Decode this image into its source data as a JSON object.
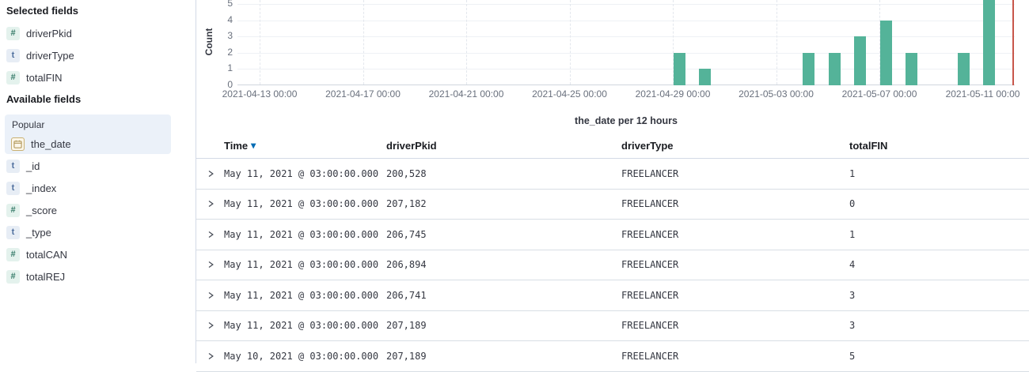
{
  "colors": {
    "bar_green": "#54B399",
    "now_marker_red": "#C8564B",
    "sort_accent_blue": "#006BB4",
    "popular_bg": "#EBF1F9",
    "number_badge": "#357A68",
    "string_badge": "#4F6F9E",
    "date_icon": "#A98E4C"
  },
  "sidebar": {
    "selected_heading": "Selected fields",
    "available_heading": "Available fields",
    "popular_label": "Popular",
    "selected_fields": [
      {
        "name": "driverPkid",
        "type": "number"
      },
      {
        "name": "driverType",
        "type": "string"
      },
      {
        "name": "totalFIN",
        "type": "number"
      }
    ],
    "popular_fields": [
      {
        "name": "the_date",
        "type": "date"
      }
    ],
    "available_fields": [
      {
        "name": "_id",
        "type": "string"
      },
      {
        "name": "_index",
        "type": "string"
      },
      {
        "name": "_score",
        "type": "number"
      },
      {
        "name": "_type",
        "type": "string"
      },
      {
        "name": "totalCAN",
        "type": "number"
      },
      {
        "name": "totalREJ",
        "type": "number"
      }
    ]
  },
  "chart_data": {
    "type": "bar",
    "title": "",
    "xlabel": "the_date per 12 hours",
    "ylabel": "Count",
    "bucket_interval": "12 hours",
    "y_ticks": [
      0,
      1,
      2,
      3,
      4,
      5
    ],
    "ylim_visible": [
      0,
      5.25
    ],
    "grid": true,
    "x_tick_labels": [
      "2021-04-13 00:00",
      "2021-04-17 00:00",
      "2021-04-21 00:00",
      "2021-04-25 00:00",
      "2021-04-29 00:00",
      "2021-05-03 00:00",
      "2021-05-07 00:00",
      "2021-05-11 00:00"
    ],
    "bars": [
      {
        "time": "2021-04-29T00:00",
        "count": 2
      },
      {
        "time": "2021-04-30T00:00",
        "count": 1
      },
      {
        "time": "2021-05-04T00:00",
        "count": 2
      },
      {
        "time": "2021-05-05T00:00",
        "count": 2
      },
      {
        "time": "2021-05-06T00:00",
        "count": 3
      },
      {
        "time": "2021-05-07T00:00",
        "count": 4
      },
      {
        "time": "2021-05-08T00:00",
        "count": 2
      },
      {
        "time": "2021-05-10T00:00",
        "count": 2
      },
      {
        "time": "2021-05-11T00:00",
        "count": 6,
        "clipped_at_top": true
      }
    ],
    "now_marker": true
  },
  "table": {
    "headers": [
      {
        "label": "Time",
        "sorted": "desc"
      },
      {
        "label": "driverPkid"
      },
      {
        "label": "driverType"
      },
      {
        "label": "totalFIN"
      }
    ],
    "sort_arrow_glyph": "▾",
    "rows": [
      {
        "time": "May 11, 2021 @ 03:00:00.000",
        "driverPkid": "200,528",
        "driverType": "FREELANCER",
        "totalFIN": "1"
      },
      {
        "time": "May 11, 2021 @ 03:00:00.000",
        "driverPkid": "207,182",
        "driverType": "FREELANCER",
        "totalFIN": "0"
      },
      {
        "time": "May 11, 2021 @ 03:00:00.000",
        "driverPkid": "206,745",
        "driverType": "FREELANCER",
        "totalFIN": "1"
      },
      {
        "time": "May 11, 2021 @ 03:00:00.000",
        "driverPkid": "206,894",
        "driverType": "FREELANCER",
        "totalFIN": "4"
      },
      {
        "time": "May 11, 2021 @ 03:00:00.000",
        "driverPkid": "206,741",
        "driverType": "FREELANCER",
        "totalFIN": "3"
      },
      {
        "time": "May 11, 2021 @ 03:00:00.000",
        "driverPkid": "207,189",
        "driverType": "FREELANCER",
        "totalFIN": "3"
      },
      {
        "time": "May 10, 2021 @ 03:00:00.000",
        "driverPkid": "207,189",
        "driverType": "FREELANCER",
        "totalFIN": "5"
      }
    ]
  }
}
